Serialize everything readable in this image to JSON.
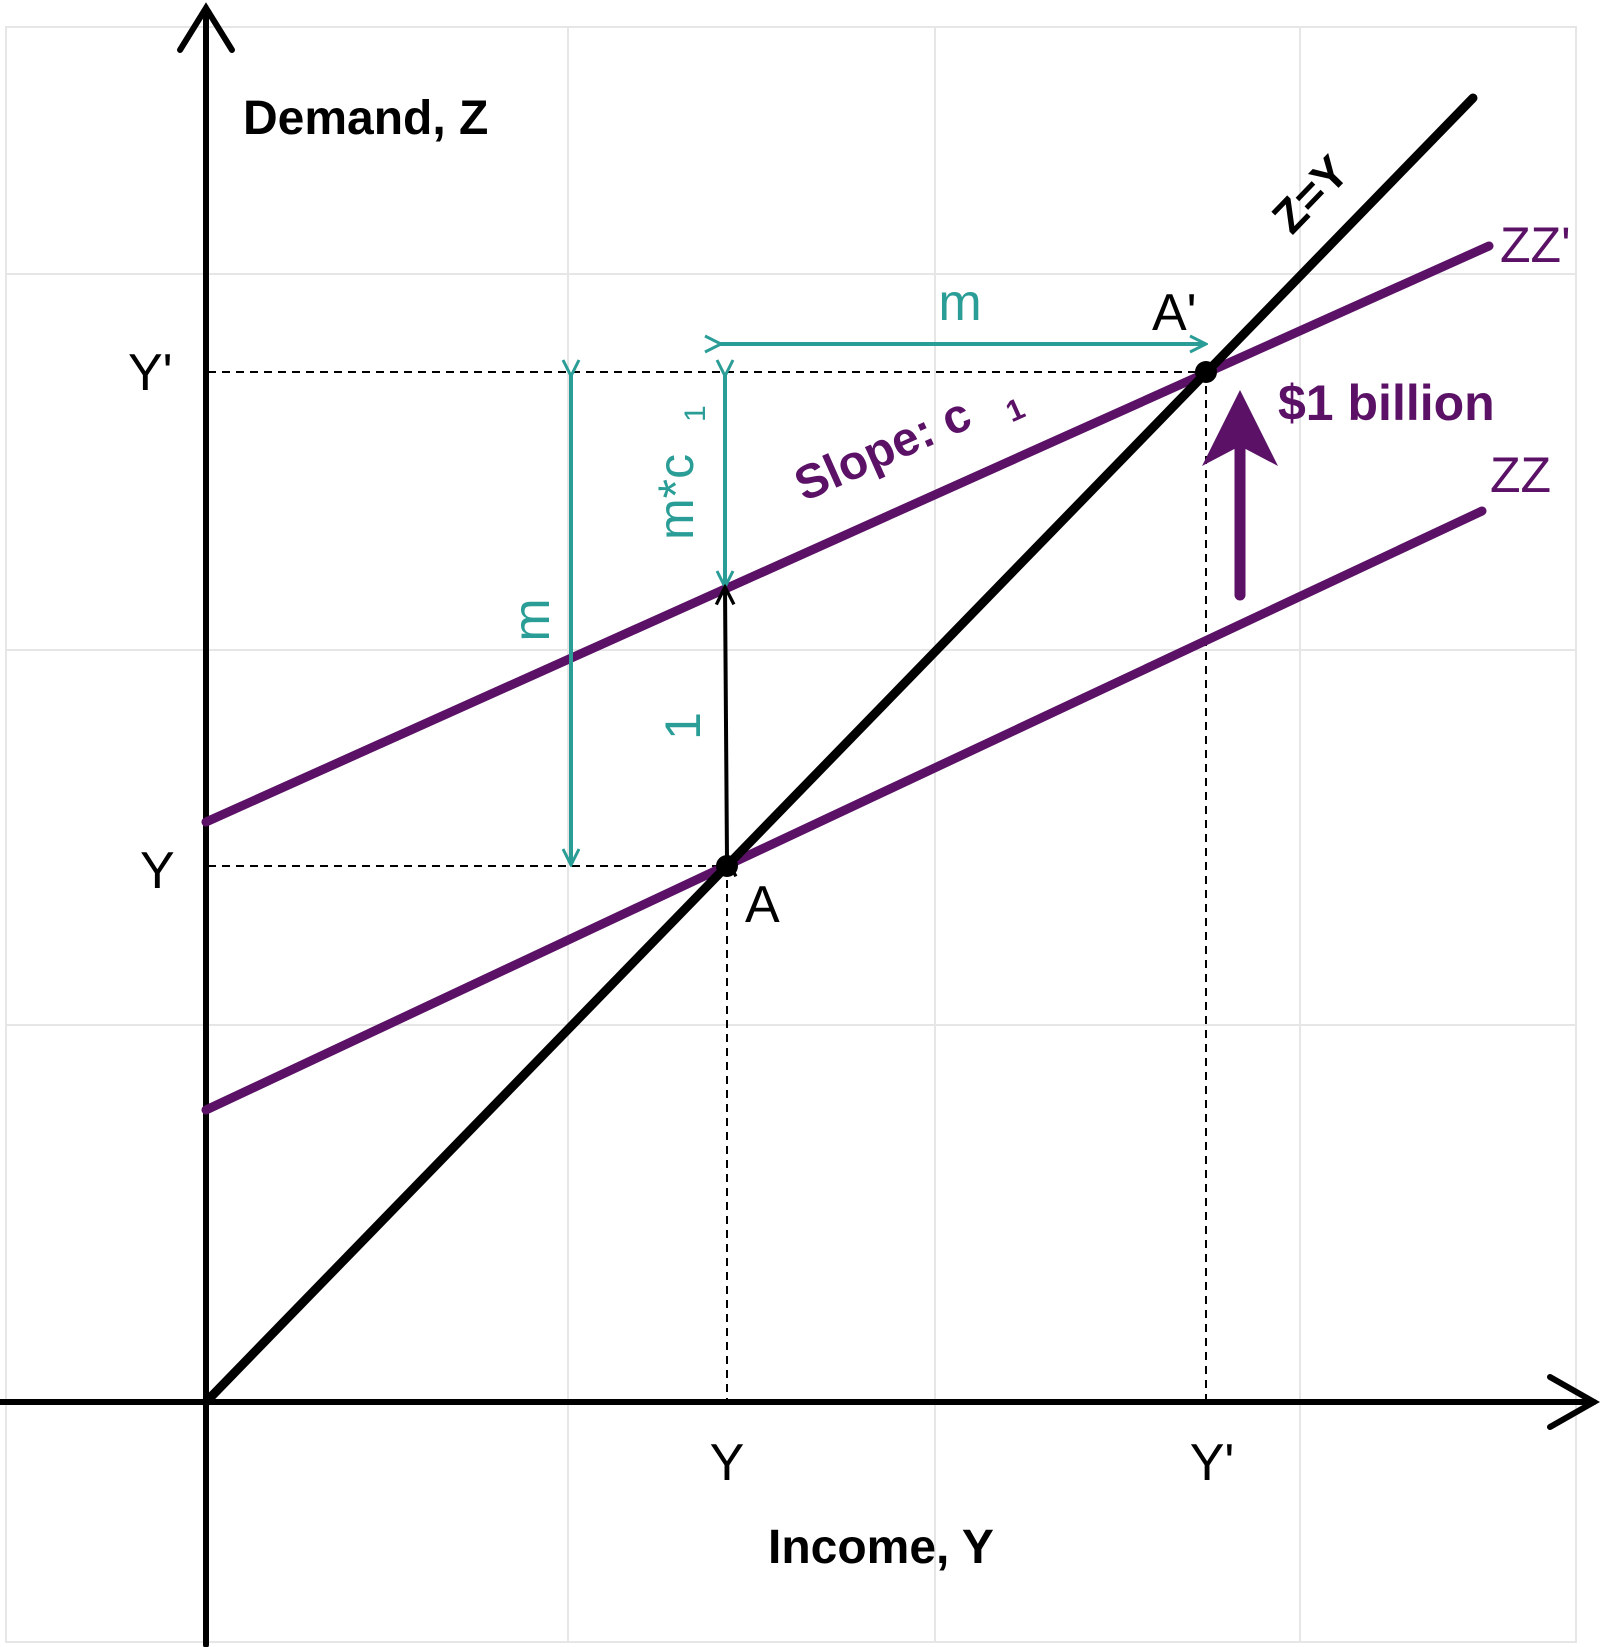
{
  "axes": {
    "y_title": "Demand, Z",
    "x_title": "Income, Y"
  },
  "ticks": {
    "y_upper": "Y'",
    "y_lower": "Y",
    "x_left": "Y",
    "x_right": "Y'"
  },
  "lines": {
    "diagonal": "Z=Y",
    "zz_new": "ZZ'",
    "zz_old": "ZZ"
  },
  "points": {
    "a": "A",
    "a_prime": "A'"
  },
  "annotations": {
    "slope_prefix": "Slope: c",
    "slope_sub": "1",
    "shift": "$1 billion",
    "m_horizontal": "m",
    "m_vertical": "m",
    "mc_prefix": "m*c",
    "mc_sub": "1",
    "one": "1"
  },
  "colors": {
    "purple": "#5a1166",
    "teal": "#2a9d97",
    "black": "#000000",
    "grid": "#e6e6e6"
  }
}
